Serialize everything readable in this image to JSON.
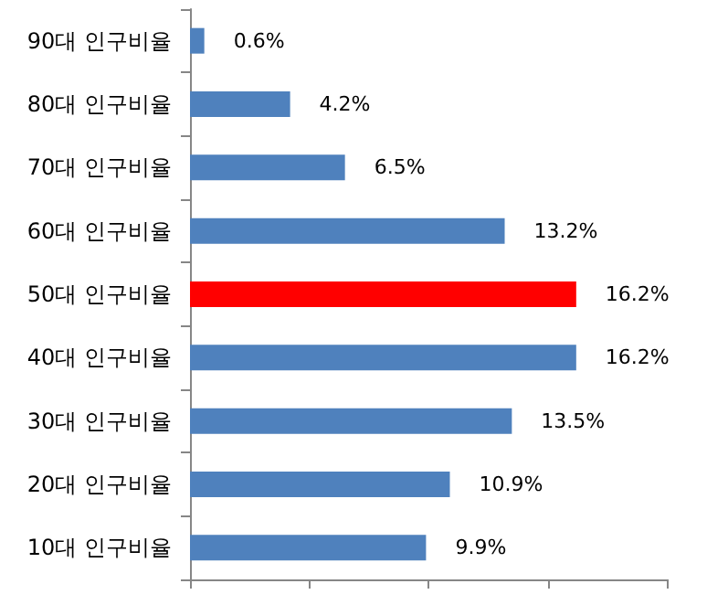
{
  "chart_data": {
    "type": "bar",
    "orientation": "horizontal",
    "categories": [
      "90대 인구비율",
      "80대 인구비율",
      "70대 인구비율",
      "60대 인구비율",
      "50대 인구비율",
      "40대 인구비율",
      "30대 인구비율",
      "20대 인구비율",
      "10대 인구비율"
    ],
    "values": [
      0.6,
      4.2,
      6.5,
      13.2,
      16.2,
      16.2,
      13.5,
      10.9,
      9.9
    ],
    "colors": [
      "#4f81bd",
      "#4f81bd",
      "#4f81bd",
      "#4f81bd",
      "#ff0000",
      "#4f81bd",
      "#4f81bd",
      "#4f81bd",
      "#4f81bd"
    ],
    "value_labels": [
      "0.6%",
      "4.2%",
      "6.5%",
      "13.2%",
      "16.2%",
      "16.2%",
      "13.5%",
      "10.9%",
      "9.9%"
    ],
    "xlim": [
      0,
      20
    ],
    "xticks": [
      {
        "value": 0,
        "label": null
      },
      {
        "value": 5,
        "label": null
      },
      {
        "value": 10,
        "label": null
      },
      {
        "value": 15,
        "label": null
      },
      {
        "value": 20,
        "label": null
      }
    ],
    "tick_labels": "y"
  }
}
